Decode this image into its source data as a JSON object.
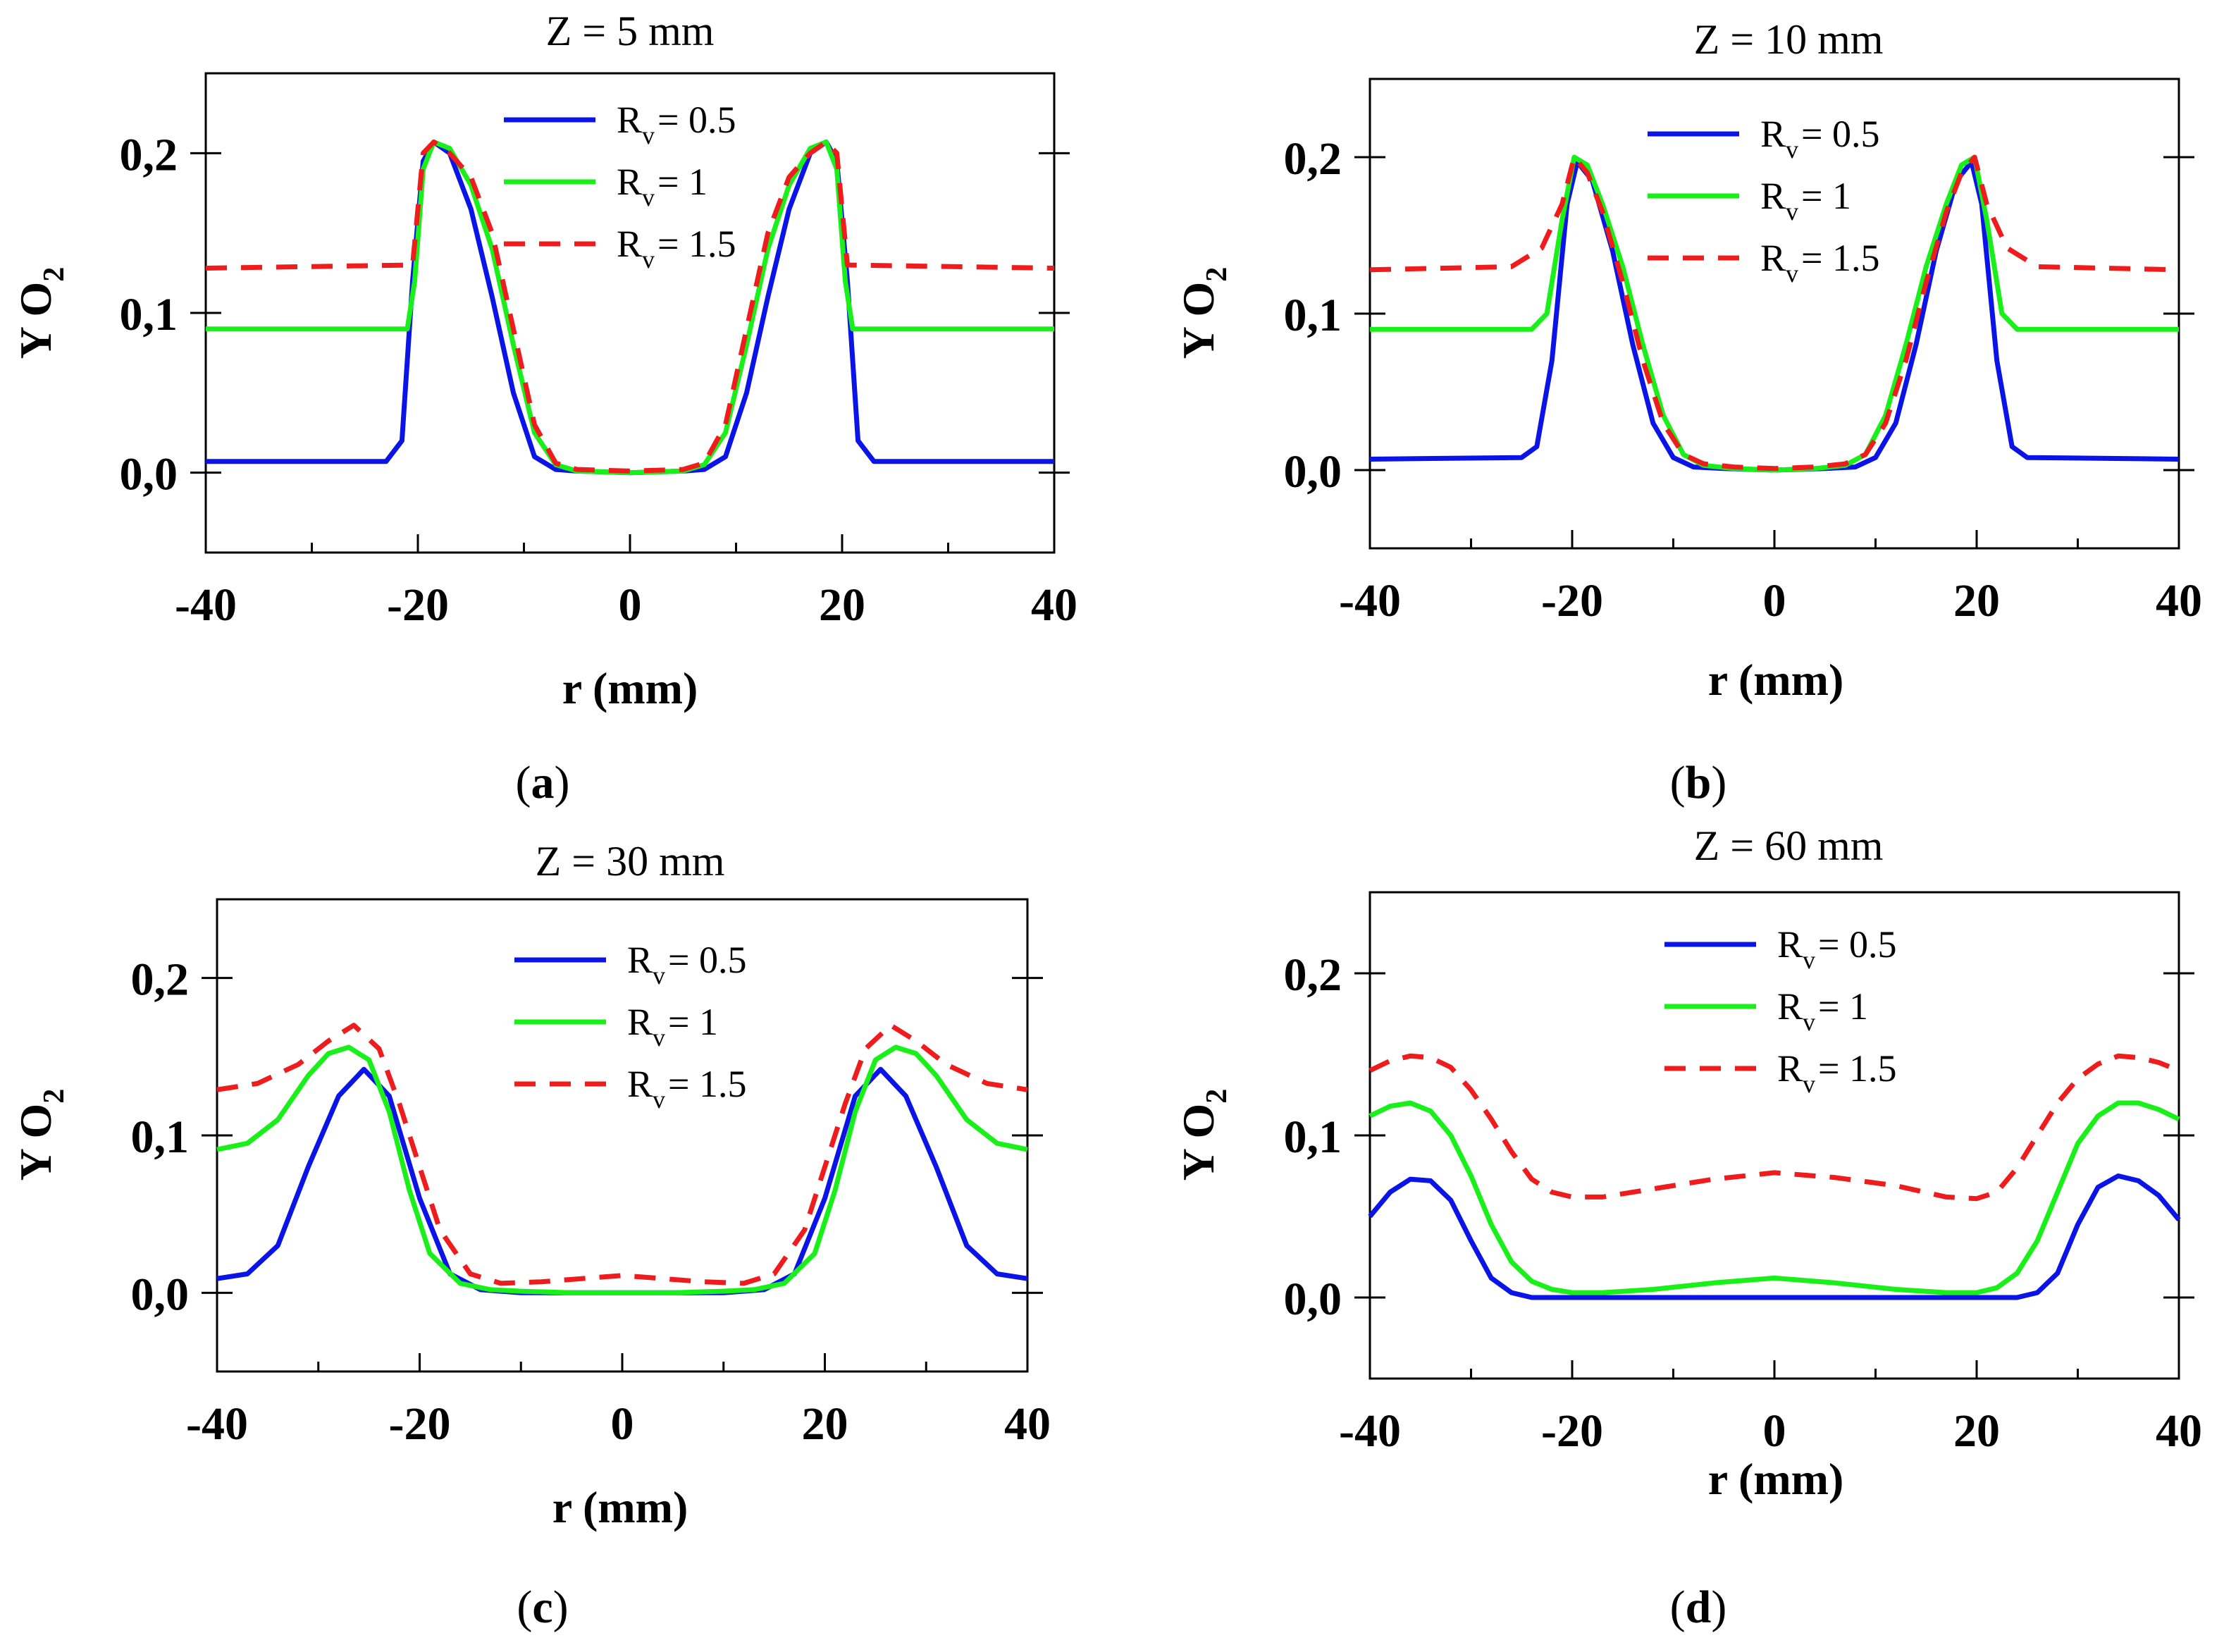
{
  "chart_data": [
    {
      "type": "line",
      "panel": "a",
      "caption": "a",
      "title": "Z = 5 mm",
      "xlabel": "r (mm)",
      "ylabel_main": "Y O",
      "ylabel_sub": "2",
      "xlim": [
        -40,
        40
      ],
      "ylim": [
        -0.05,
        0.25
      ],
      "xticks": [
        -40,
        -20,
        0,
        20,
        40
      ],
      "xtick_labels": [
        "-40",
        "-20",
        "0",
        "20",
        "40"
      ],
      "yticks": [
        0.0,
        0.1,
        0.2
      ],
      "ytick_labels": [
        "0,0",
        "0,1",
        "0,2"
      ],
      "legend_position": "top-center",
      "series": [
        {
          "name": "R_v = 0.5",
          "label_main": "R",
          "label_sub": "v",
          "label_rest": "= 0.5",
          "color": "#0a14e6",
          "dash": "solid",
          "x": [
            -40,
            -23,
            -21.5,
            -20.5,
            -19.5,
            -18.5,
            -17,
            -15,
            -13,
            -11,
            -9,
            -7,
            -5,
            0,
            5,
            7,
            9,
            11,
            13,
            15,
            17,
            18.5,
            19.5,
            20.5,
            21.5,
            23,
            40
          ],
          "y": [
            0.007,
            0.007,
            0.02,
            0.12,
            0.195,
            0.207,
            0.2,
            0.165,
            0.11,
            0.05,
            0.01,
            0.002,
            0.001,
            0.0,
            0.001,
            0.002,
            0.01,
            0.05,
            0.11,
            0.165,
            0.2,
            0.207,
            0.195,
            0.12,
            0.02,
            0.007,
            0.007
          ]
        },
        {
          "name": "R_v = 1",
          "label_main": "R",
          "label_sub": "v",
          "label_rest": "= 1",
          "color": "#19f019",
          "dash": "solid",
          "x": [
            -40,
            -21,
            -20.3,
            -19.5,
            -18.5,
            -17,
            -15,
            -13,
            -11,
            -9,
            -7,
            -5,
            0,
            5,
            7,
            9,
            11,
            13,
            15,
            17,
            18.5,
            19.5,
            20.3,
            21,
            40
          ],
          "y": [
            0.09,
            0.09,
            0.12,
            0.19,
            0.207,
            0.203,
            0.18,
            0.14,
            0.08,
            0.025,
            0.005,
            0.001,
            0.0,
            0.001,
            0.005,
            0.025,
            0.08,
            0.14,
            0.18,
            0.203,
            0.207,
            0.19,
            0.12,
            0.09,
            0.09
          ]
        },
        {
          "name": "R_v = 1.5",
          "label_main": "R",
          "label_sub": "v",
          "label_rest": "= 1.5",
          "color": "#ee1c1c",
          "dash": "dashed",
          "x": [
            -40,
            -20.5,
            -19.5,
            -18.5,
            -17,
            -15,
            -13,
            -11,
            -9,
            -7,
            -5,
            0,
            5,
            7,
            9,
            11,
            13,
            15,
            17,
            18.5,
            19.5,
            20.5,
            40
          ],
          "y": [
            0.128,
            0.13,
            0.2,
            0.207,
            0.2,
            0.185,
            0.15,
            0.09,
            0.03,
            0.006,
            0.002,
            0.001,
            0.002,
            0.006,
            0.03,
            0.09,
            0.15,
            0.185,
            0.2,
            0.207,
            0.2,
            0.13,
            0.128
          ]
        }
      ]
    },
    {
      "type": "line",
      "panel": "b",
      "caption": "b",
      "title": "Z = 10 mm",
      "xlabel": "r (mm)",
      "ylabel_main": "Y O",
      "ylabel_sub": "2",
      "xlim": [
        -40,
        40
      ],
      "ylim": [
        -0.05,
        0.25
      ],
      "xticks": [
        -40,
        -20,
        0,
        20,
        40
      ],
      "xtick_labels": [
        "-40",
        "-20",
        "0",
        "20",
        "40"
      ],
      "yticks": [
        0.0,
        0.1,
        0.2
      ],
      "ytick_labels": [
        "0,0",
        "0,1",
        "0,2"
      ],
      "legend_position": "top-center",
      "series": [
        {
          "name": "R_v = 0.5",
          "label_main": "R",
          "label_sub": "v",
          "label_rest": "= 0.5",
          "color": "#0a14e6",
          "dash": "solid",
          "x": [
            -40,
            -25,
            -23.5,
            -22,
            -20.5,
            -19.5,
            -18,
            -16,
            -14,
            -12,
            -10,
            -8,
            -5,
            0,
            5,
            8,
            10,
            12,
            14,
            16,
            18,
            19.5,
            20.5,
            22,
            23.5,
            25,
            40
          ],
          "y": [
            0.007,
            0.008,
            0.015,
            0.07,
            0.17,
            0.197,
            0.185,
            0.14,
            0.08,
            0.03,
            0.008,
            0.002,
            0.001,
            0.0,
            0.001,
            0.002,
            0.008,
            0.03,
            0.08,
            0.14,
            0.185,
            0.197,
            0.17,
            0.07,
            0.015,
            0.008,
            0.007
          ]
        },
        {
          "name": "R_v = 1",
          "label_main": "R",
          "label_sub": "v",
          "label_rest": "= 1",
          "color": "#19f019",
          "dash": "solid",
          "x": [
            -40,
            -24,
            -22.5,
            -21,
            -19.8,
            -18.5,
            -17,
            -15,
            -13,
            -11,
            -9,
            -7,
            -4,
            0,
            4,
            7,
            9,
            11,
            13,
            15,
            17,
            18.5,
            19.8,
            21,
            22.5,
            24,
            40
          ],
          "y": [
            0.09,
            0.09,
            0.1,
            0.16,
            0.2,
            0.195,
            0.17,
            0.13,
            0.08,
            0.035,
            0.01,
            0.003,
            0.001,
            0.0,
            0.001,
            0.003,
            0.01,
            0.035,
            0.08,
            0.13,
            0.17,
            0.195,
            0.2,
            0.16,
            0.1,
            0.09,
            0.09
          ]
        },
        {
          "name": "R_v = 1.5",
          "label_main": "R",
          "label_sub": "v",
          "label_rest": "= 1.5",
          "color": "#ee1c1c",
          "dash": "dashed",
          "x": [
            -40,
            -26,
            -23,
            -21,
            -19.8,
            -18.5,
            -17,
            -15,
            -13,
            -11,
            -9,
            -7,
            -4,
            0,
            4,
            7,
            9,
            11,
            13,
            15,
            17,
            18.5,
            19.8,
            21,
            23,
            26,
            40
          ],
          "y": [
            0.128,
            0.13,
            0.142,
            0.17,
            0.2,
            0.19,
            0.165,
            0.12,
            0.07,
            0.03,
            0.01,
            0.004,
            0.002,
            0.001,
            0.002,
            0.004,
            0.01,
            0.03,
            0.07,
            0.12,
            0.165,
            0.19,
            0.2,
            0.17,
            0.142,
            0.13,
            0.128
          ]
        }
      ]
    },
    {
      "type": "line",
      "panel": "c",
      "caption": "c",
      "title": "Z = 30 mm",
      "xlabel": "r (mm)",
      "ylabel_main": "Y O",
      "ylabel_sub": "2",
      "xlim": [
        -40,
        40
      ],
      "ylim": [
        -0.05,
        0.25
      ],
      "xticks": [
        -40,
        -20,
        0,
        20,
        40
      ],
      "xtick_labels": [
        "-40",
        "-20",
        "0",
        "20",
        "40"
      ],
      "yticks": [
        0.0,
        0.1,
        0.2
      ],
      "ytick_labels": [
        "0,0",
        "0,1",
        "0,2"
      ],
      "legend_position": "top-center",
      "series": [
        {
          "name": "R_v = 0.5",
          "label_main": "R",
          "label_sub": "v",
          "label_rest": "= 0.5",
          "color": "#0a14e6",
          "dash": "solid",
          "x": [
            -40,
            -37,
            -34,
            -31,
            -28,
            -25.5,
            -23,
            -20,
            -17,
            -14,
            -10,
            0,
            10,
            14,
            17,
            20,
            23,
            25.5,
            28,
            31,
            34,
            37,
            40
          ],
          "y": [
            0.009,
            0.012,
            0.03,
            0.08,
            0.125,
            0.142,
            0.125,
            0.06,
            0.012,
            0.002,
            0.0,
            0.0,
            0.0,
            0.002,
            0.012,
            0.06,
            0.125,
            0.142,
            0.125,
            0.08,
            0.03,
            0.012,
            0.009
          ]
        },
        {
          "name": "R_v = 1",
          "label_main": "R",
          "label_sub": "v",
          "label_rest": "= 1",
          "color": "#19f019",
          "dash": "solid",
          "x": [
            -40,
            -37,
            -34,
            -31,
            -29,
            -27,
            -25,
            -23,
            -21,
            -19,
            -16,
            -13,
            -10,
            -5,
            0,
            5,
            10,
            13,
            16,
            19,
            21,
            23,
            25,
            27,
            29,
            31,
            34,
            37,
            40
          ],
          "y": [
            0.091,
            0.095,
            0.11,
            0.138,
            0.152,
            0.156,
            0.148,
            0.115,
            0.065,
            0.025,
            0.006,
            0.002,
            0.001,
            0.0,
            0.0,
            0.0,
            0.001,
            0.002,
            0.006,
            0.025,
            0.065,
            0.115,
            0.148,
            0.156,
            0.152,
            0.138,
            0.11,
            0.095,
            0.091
          ]
        },
        {
          "name": "R_v = 1.5",
          "label_main": "R",
          "label_sub": "v",
          "label_rest": "= 1.5",
          "color": "#ee1c1c",
          "dash": "dashed",
          "x": [
            -40,
            -36,
            -32,
            -29,
            -26.5,
            -24,
            -22,
            -20,
            -18,
            -15,
            -12,
            -8,
            -4,
            0,
            4,
            8,
            12,
            15,
            18,
            20,
            22,
            24,
            26.5,
            29,
            32,
            36,
            40
          ],
          "y": [
            0.129,
            0.133,
            0.145,
            0.16,
            0.17,
            0.155,
            0.12,
            0.08,
            0.04,
            0.012,
            0.006,
            0.007,
            0.009,
            0.011,
            0.009,
            0.007,
            0.006,
            0.012,
            0.04,
            0.08,
            0.12,
            0.155,
            0.17,
            0.16,
            0.145,
            0.133,
            0.129
          ]
        }
      ]
    },
    {
      "type": "line",
      "panel": "d",
      "caption": "d",
      "title": "Z = 60 mm",
      "xlabel": "r (mm)",
      "ylabel_main": "Y O",
      "ylabel_sub": "2",
      "xlim": [
        -40,
        40
      ],
      "ylim": [
        -0.05,
        0.25
      ],
      "xticks": [
        -40,
        -20,
        0,
        20,
        40
      ],
      "xtick_labels": [
        "-40",
        "-20",
        "0",
        "20",
        "40"
      ],
      "yticks": [
        0.0,
        0.1,
        0.2
      ],
      "ytick_labels": [
        "0,0",
        "0,1",
        "0,2"
      ],
      "legend_position": "top-center",
      "series": [
        {
          "name": "R_v = 0.5",
          "label_main": "R",
          "label_sub": "v",
          "label_rest": "= 0.5",
          "color": "#0a14e6",
          "dash": "solid",
          "x": [
            -40,
            -38,
            -36,
            -34,
            -32,
            -30,
            -28,
            -26,
            -24,
            -20,
            0,
            20,
            24,
            26,
            28,
            30,
            32,
            34,
            36,
            38,
            40
          ],
          "y": [
            0.05,
            0.065,
            0.073,
            0.072,
            0.06,
            0.035,
            0.012,
            0.003,
            0.0,
            0.0,
            0.0,
            0.0,
            0.0,
            0.003,
            0.015,
            0.045,
            0.068,
            0.075,
            0.072,
            0.063,
            0.048
          ]
        },
        {
          "name": "R_v = 1",
          "label_main": "R",
          "label_sub": "v",
          "label_rest": "= 1",
          "color": "#19f019",
          "dash": "solid",
          "x": [
            -40,
            -38,
            -36,
            -34,
            -32,
            -30,
            -28,
            -26,
            -24,
            -22,
            -20,
            -17,
            -12,
            -6,
            0,
            6,
            12,
            17,
            20,
            22,
            24,
            26,
            28,
            30,
            32,
            34,
            36,
            38,
            40
          ],
          "y": [
            0.112,
            0.118,
            0.12,
            0.115,
            0.1,
            0.075,
            0.045,
            0.022,
            0.01,
            0.005,
            0.003,
            0.003,
            0.005,
            0.009,
            0.012,
            0.009,
            0.005,
            0.003,
            0.003,
            0.006,
            0.015,
            0.035,
            0.065,
            0.095,
            0.112,
            0.12,
            0.12,
            0.116,
            0.11
          ]
        },
        {
          "name": "R_v = 1.5",
          "label_main": "R",
          "label_sub": "v",
          "label_rest": "= 1.5",
          "color": "#ee1c1c",
          "dash": "dashed",
          "x": [
            -40,
            -38,
            -36,
            -34,
            -32,
            -30,
            -28,
            -26,
            -24,
            -22,
            -20,
            -17,
            -12,
            -6,
            0,
            6,
            12,
            17,
            20,
            22,
            24,
            26,
            28,
            30,
            32,
            34,
            36,
            38,
            40
          ],
          "y": [
            0.14,
            0.146,
            0.149,
            0.148,
            0.142,
            0.128,
            0.11,
            0.09,
            0.073,
            0.065,
            0.062,
            0.062,
            0.067,
            0.073,
            0.077,
            0.074,
            0.069,
            0.062,
            0.061,
            0.065,
            0.08,
            0.1,
            0.12,
            0.135,
            0.144,
            0.149,
            0.148,
            0.145,
            0.14
          ]
        }
      ]
    }
  ]
}
